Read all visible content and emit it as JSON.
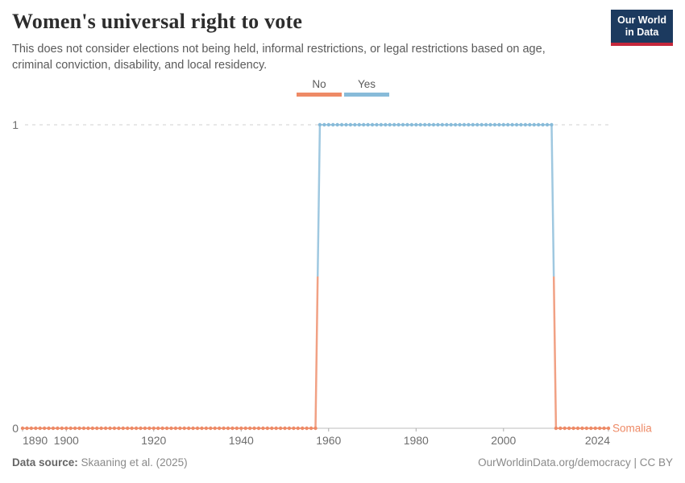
{
  "header": {
    "title": "Women's universal right to vote",
    "subtitle_lines": [
      "This does not consider elections not being held, informal restrictions, or legal restrictions based on age,",
      "criminal conviction, disability, and local residency."
    ],
    "logo": {
      "line1": "Our World",
      "line2": "in Data",
      "bg_color": "#1c3a5f",
      "accent_color": "#c5273b"
    }
  },
  "legend": {
    "position": "top-center",
    "items": [
      {
        "label": "No",
        "color": "#ee8a66"
      },
      {
        "label": "Yes",
        "color": "#88bbd9"
      }
    ]
  },
  "chart_data": {
    "type": "line",
    "style": "step line with per-year dot markers, colored by category",
    "title": "Women's universal right to vote",
    "entity": "Somalia",
    "xlim": [
      1890,
      2024
    ],
    "ylim": [
      0,
      1
    ],
    "x_ticks": [
      1890,
      1900,
      1920,
      1940,
      1960,
      1980,
      2000,
      2024
    ],
    "y_ticks": [
      0,
      1
    ],
    "grid": "dashed horizontal gridline at y=1 only; solid axis line at y=0",
    "legend_position": "top-center",
    "categories": [
      {
        "label": "No",
        "value": 0,
        "color": "#ee8a66"
      },
      {
        "label": "Yes",
        "value": 1,
        "color": "#88bbd9"
      }
    ],
    "series": [
      {
        "name": "Somalia",
        "segments": [
          {
            "category": "No",
            "value": 0,
            "start_year": 1890,
            "end_year": 1957
          },
          {
            "category": "Yes",
            "value": 1,
            "start_year": 1958,
            "end_year": 2011
          },
          {
            "category": "No",
            "value": 0,
            "start_year": 2012,
            "end_year": 2024
          }
        ]
      }
    ]
  },
  "footer": {
    "source_label": "Data source:",
    "source_value": "Skaaning et al. (2025)",
    "credit": "OurWorldinData.org/democracy | CC BY"
  }
}
